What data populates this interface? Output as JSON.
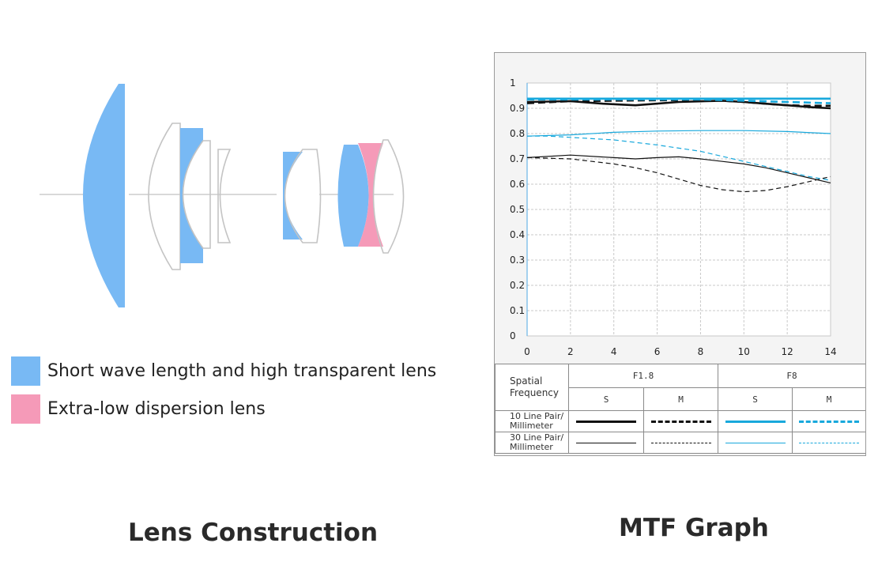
{
  "legend": {
    "items": [
      {
        "label": "Short wave length and high transparent lens",
        "color": "#78b9f4"
      },
      {
        "label": "Extra-low dispersion lens",
        "color": "#f59ab8"
      }
    ]
  },
  "captions": {
    "left": "Lens Construction",
    "right": "MTF Graph"
  },
  "chart_data": {
    "type": "line",
    "title": "MTF Graph",
    "xlim": [
      0,
      14
    ],
    "ylim": [
      0,
      1
    ],
    "x_ticks": [
      "0",
      "2",
      "4",
      "6",
      "8",
      "10",
      "12",
      "14"
    ],
    "y_ticks": [
      "0",
      "0.1",
      "0.2",
      "0.3",
      "0.4",
      "0.5",
      "0.6",
      "0.7",
      "0.8",
      "0.9",
      "1"
    ],
    "grid": true,
    "series": [
      {
        "name": "F1.8 S 10 Line Pair/Millimeter",
        "aperture": "F1.8",
        "direction": "S",
        "frequency": "10 Line Pair/ Millimeter",
        "color": "#111111",
        "dash": false,
        "width": 2.6,
        "x": [
          0,
          2,
          3.5,
          5,
          7,
          9,
          10,
          11,
          12,
          13,
          14
        ],
        "y": [
          0.925,
          0.928,
          0.918,
          0.912,
          0.925,
          0.93,
          0.925,
          0.918,
          0.912,
          0.905,
          0.9
        ]
      },
      {
        "name": "F1.8 M 10 Line Pair/Millimeter",
        "aperture": "F1.8",
        "direction": "M",
        "frequency": "10 Line Pair/ Millimeter",
        "color": "#111111",
        "dash": true,
        "width": 2.6,
        "x": [
          0,
          2,
          4,
          6,
          8,
          9,
          10,
          11,
          12,
          13,
          14
        ],
        "y": [
          0.92,
          0.928,
          0.93,
          0.932,
          0.932,
          0.93,
          0.925,
          0.918,
          0.912,
          0.91,
          0.91
        ]
      },
      {
        "name": "F8 S 10 Line Pair/Millimeter",
        "aperture": "F8",
        "direction": "S",
        "frequency": "10 Line Pair/ Millimeter",
        "color": "#18a8dc",
        "dash": false,
        "width": 2.6,
        "x": [
          0,
          4,
          8,
          12,
          14
        ],
        "y": [
          0.938,
          0.938,
          0.938,
          0.938,
          0.938
        ]
      },
      {
        "name": "F8 M 10 Line Pair/Millimeter",
        "aperture": "F8",
        "direction": "M",
        "frequency": "10 Line Pair/ Millimeter",
        "color": "#18a8dc",
        "dash": true,
        "width": 2.6,
        "x": [
          0,
          4,
          8,
          10,
          12,
          14
        ],
        "y": [
          0.935,
          0.935,
          0.935,
          0.93,
          0.925,
          0.92
        ]
      },
      {
        "name": "F1.8 S 30 Line Pair/Millimeter",
        "aperture": "F1.8",
        "direction": "S",
        "frequency": "30 Line Pair/ Millimeter",
        "color": "#111111",
        "dash": false,
        "width": 1.2,
        "x": [
          0,
          2,
          4,
          5,
          6,
          7,
          8,
          9,
          10,
          11,
          12,
          13,
          14
        ],
        "y": [
          0.705,
          0.715,
          0.705,
          0.7,
          0.705,
          0.708,
          0.7,
          0.69,
          0.68,
          0.665,
          0.645,
          0.625,
          0.605
        ]
      },
      {
        "name": "F1.8 M 30 Line Pair/Millimeter",
        "aperture": "F1.8",
        "direction": "M",
        "frequency": "30 Line Pair/ Millimeter",
        "color": "#111111",
        "dash": true,
        "width": 1.2,
        "x": [
          0,
          2,
          3,
          4,
          5,
          6,
          7,
          8,
          9,
          10,
          11,
          12,
          13,
          14
        ],
        "y": [
          0.705,
          0.7,
          0.69,
          0.68,
          0.665,
          0.645,
          0.62,
          0.595,
          0.578,
          0.57,
          0.575,
          0.59,
          0.61,
          0.63
        ]
      },
      {
        "name": "F8 S 30 Line Pair/Millimeter",
        "aperture": "F8",
        "direction": "S",
        "frequency": "30 Line Pair/ Millimeter",
        "color": "#18a8dc",
        "dash": false,
        "width": 1.2,
        "x": [
          0,
          2,
          4,
          6,
          8,
          10,
          12,
          14
        ],
        "y": [
          0.79,
          0.795,
          0.805,
          0.81,
          0.812,
          0.812,
          0.808,
          0.8
        ]
      },
      {
        "name": "F8 M 30 Line Pair/Millimeter",
        "aperture": "F8",
        "direction": "M",
        "frequency": "30 Line Pair/ Millimeter",
        "color": "#18a8dc",
        "dash": true,
        "width": 1.2,
        "x": [
          0,
          1,
          2,
          4,
          6,
          8,
          9,
          10,
          11,
          12,
          13,
          14
        ],
        "y": [
          0.79,
          0.79,
          0.785,
          0.775,
          0.755,
          0.73,
          0.71,
          0.69,
          0.67,
          0.65,
          0.63,
          0.615
        ]
      }
    ],
    "table": {
      "header_label": "Spatial Frequency",
      "apertures": [
        "F1.8",
        "F8"
      ],
      "directions": [
        "S",
        "M",
        "S",
        "M"
      ],
      "rows": [
        "10 Line Pair/ Millimeter",
        "30 Line Pair/ Millimeter"
      ]
    }
  }
}
